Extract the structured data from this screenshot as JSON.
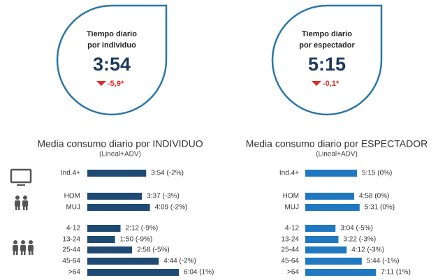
{
  "kpis": [
    {
      "title_lines": [
        "Tiempo diario",
        "por individuo"
      ],
      "value": "3:54",
      "change": "-5,9*"
    },
    {
      "title_lines": [
        "Tiempo diario",
        "por espectador"
      ],
      "value": "5:15",
      "change": "-0,1*"
    }
  ],
  "chart_data": [
    {
      "type": "bar",
      "orientation": "horizontal",
      "title": "Media consumo diario por INDIVIDUO",
      "subtitle": "(Lineal+ADV)",
      "categories": [
        "Ind.4+",
        "HOM",
        "MUJ",
        "4-12",
        "13-24",
        "25-44",
        "45-64",
        ">64"
      ],
      "values": [
        234,
        217,
        249,
        132,
        110,
        178,
        284,
        364
      ],
      "value_labels": [
        "3:54 (-2%)",
        "3:37 (-3%)",
        "4:09 (-2%)",
        "2:12 (-9%)",
        "1:50 (-9%)",
        "2:58 (-5%)",
        "4:44 (-2%)",
        "6:04 (1%)"
      ],
      "color": "#1f4a73"
    },
    {
      "type": "bar",
      "orientation": "horizontal",
      "title": "Media consumo diario por ESPECTADOR",
      "subtitle": "(Lineal+ADV)",
      "categories": [
        "Ind.4+",
        "HOM",
        "MUJ",
        "4-12",
        "13-24",
        "25-44",
        "45-64",
        ">64"
      ],
      "values": [
        315,
        298,
        331,
        184,
        202,
        252,
        344,
        431
      ],
      "value_labels": [
        "5:15 (0%)",
        "4:58 (0%)",
        "5:31 (0%)",
        "3:04 (-5%)",
        "3:22 (-3%)",
        "4:12 (-3%)",
        "5:44 (-1%)",
        "7:11 (1%)"
      ],
      "color": "#1f78c0"
    }
  ]
}
